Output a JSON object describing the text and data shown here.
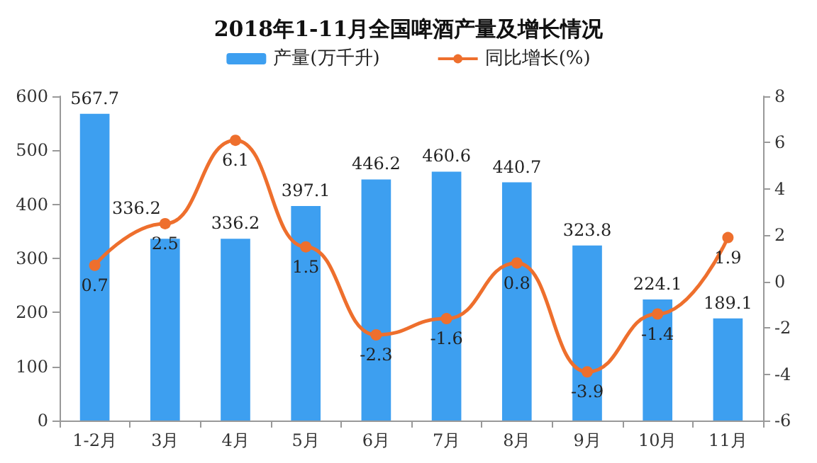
{
  "chart_data": {
    "type": "bar",
    "title": "2018年1-11月全国啤酒产量及增长情况",
    "categories": [
      "1-2月",
      "3月",
      "4月",
      "5月",
      "6月",
      "7月",
      "8月",
      "9月",
      "10月",
      "11月"
    ],
    "series": [
      {
        "name": "产量(万千升)",
        "type": "bar",
        "color": "#3d9ff0",
        "values": [
          567.7,
          336.2,
          336.2,
          397.1,
          446.2,
          460.6,
          440.7,
          323.8,
          224.1,
          189.1
        ]
      },
      {
        "name": "同比增长(%)",
        "type": "line",
        "axis": "y2",
        "color": "#ee6f2d",
        "values": [
          0.7,
          2.5,
          6.1,
          1.5,
          -2.3,
          -1.6,
          0.8,
          -3.9,
          -1.4,
          1.9
        ]
      }
    ],
    "ylim": [
      0,
      600
    ],
    "yticks": [
      0,
      100,
      200,
      300,
      400,
      500,
      600
    ],
    "y2lim": [
      -6,
      8
    ],
    "y2ticks": [
      -6,
      -4,
      -2,
      0,
      2,
      4,
      6,
      8
    ],
    "data_labels": true,
    "legend": "top",
    "grid": false,
    "marker": "circle"
  }
}
